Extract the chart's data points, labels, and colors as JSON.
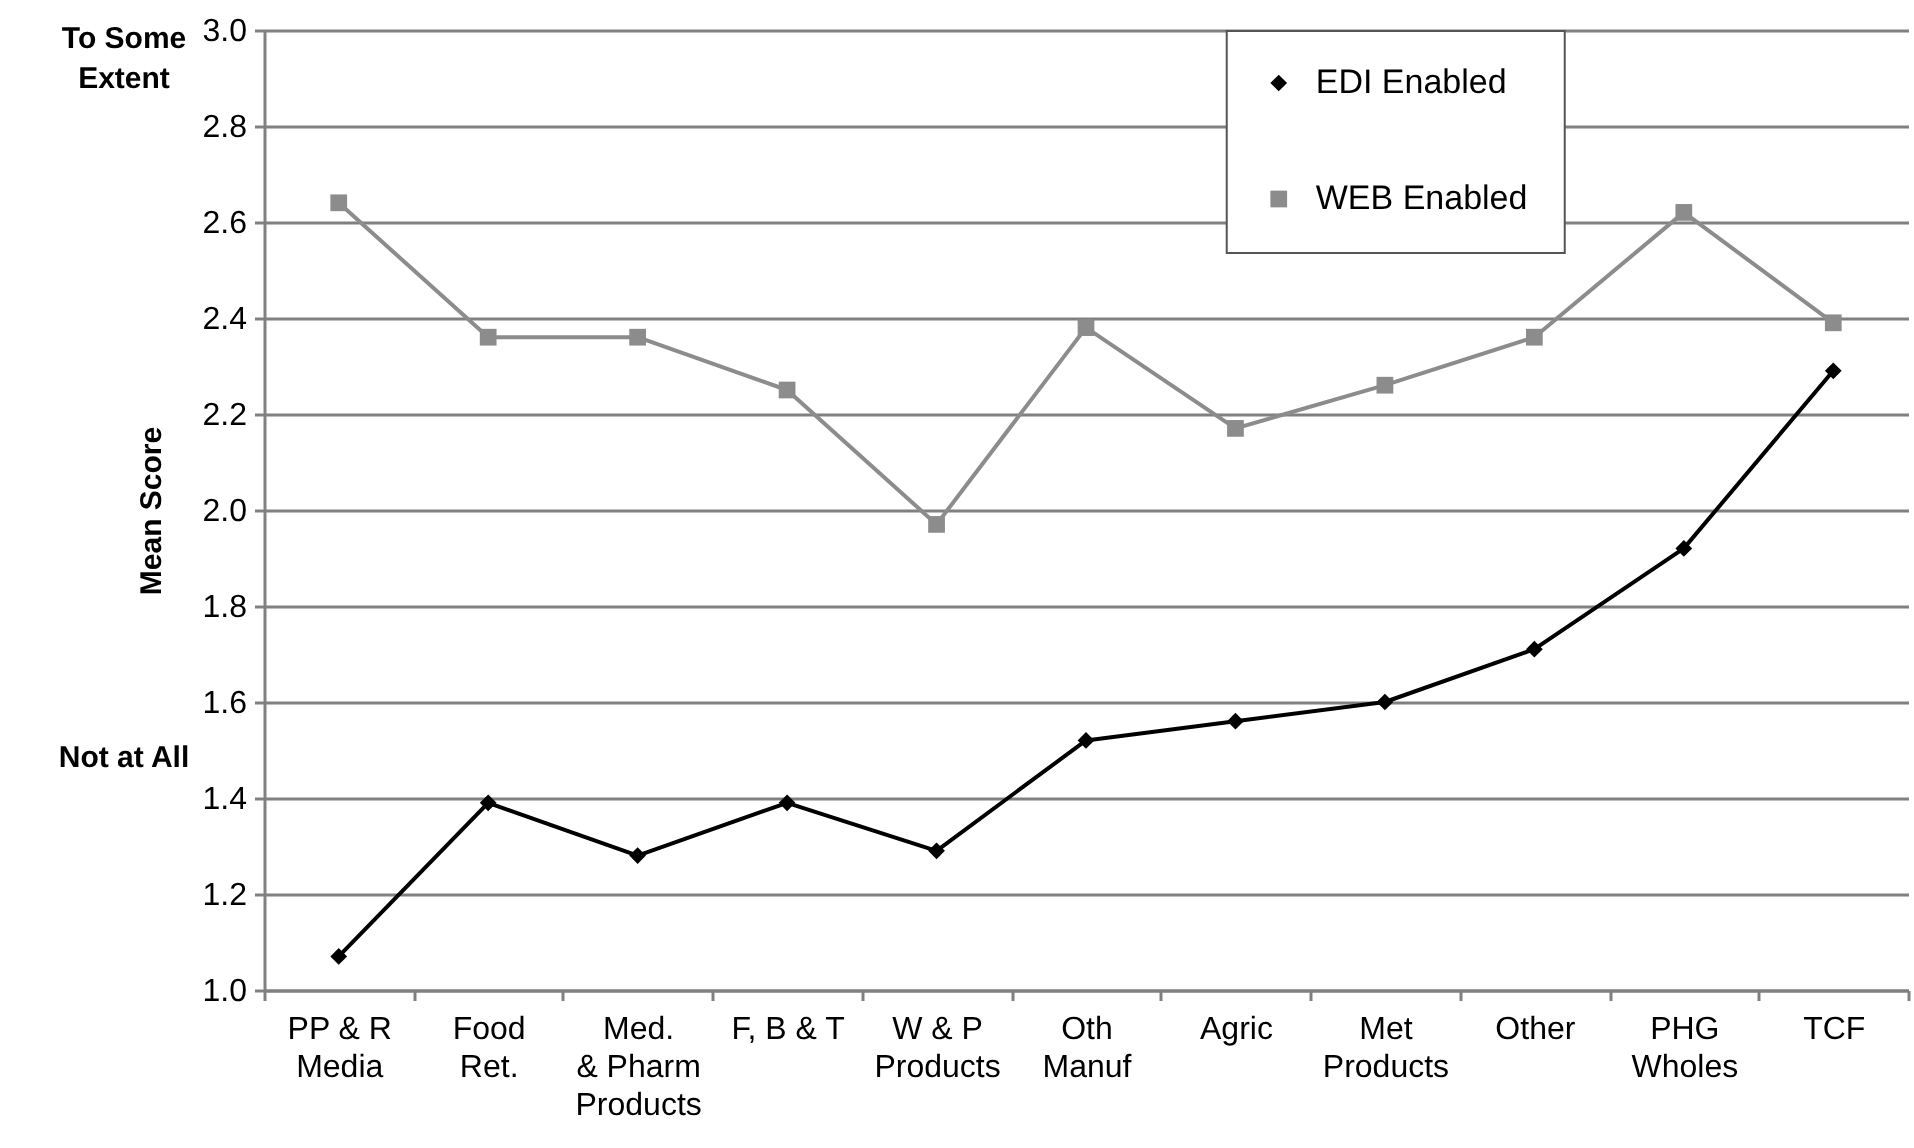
{
  "chart_data": {
    "type": "line",
    "ylabel": "Mean Score",
    "categories": [
      "PP & R\nMedia",
      "Food\nRet.",
      "Med.\n& Pharm\nProducts",
      "F, B & T",
      "W & P\nProducts",
      "Oth\nManuf",
      "Agric",
      "Met\nProducts",
      "Other",
      "PHG\nWholes",
      "TCF"
    ],
    "series": [
      {
        "name": "EDI Enabled",
        "color": "#000000",
        "marker": "diamond",
        "values": [
          1.07,
          1.39,
          1.28,
          1.39,
          1.29,
          1.52,
          1.56,
          1.6,
          1.71,
          1.92,
          2.29
        ]
      },
      {
        "name": "WEB Enabled",
        "color": "#8c8c8c",
        "marker": "square",
        "values": [
          2.64,
          2.36,
          2.36,
          2.25,
          1.97,
          2.38,
          2.17,
          2.26,
          2.36,
          2.62,
          2.39
        ]
      }
    ],
    "ylim": [
      1.0,
      3.0
    ],
    "yticks": [
      {
        "value": 1,
        "label": "1.0"
      },
      1.2,
      1.4,
      1.6,
      1.8,
      {
        "value": 2,
        "label": "2.0"
      },
      2.2,
      2.4,
      2.6,
      2.8,
      {
        "value": 3,
        "label": "3.0"
      }
    ],
    "grid": "y",
    "legend": "top right",
    "line_style": "solid",
    "annotations": [
      "To Some\nExtent",
      "Not at All"
    ]
  }
}
